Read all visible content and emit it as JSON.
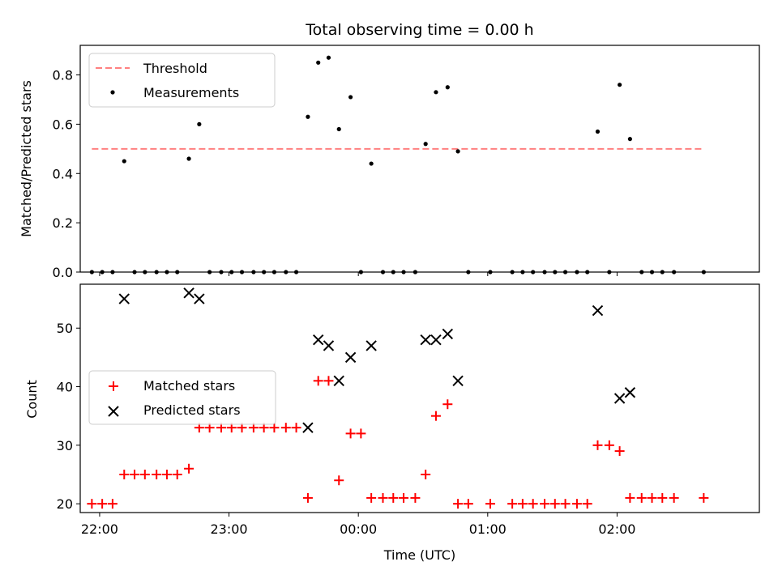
{
  "figure": {
    "title": "Total observing time = 0.00 h",
    "xlabel": "Time (UTC)"
  },
  "chart_data": [
    {
      "type": "scatter",
      "panel": "top",
      "ylabel": "Matched/Predicted stars",
      "xlim": [
        -0.15,
        5.1
      ],
      "ylim": [
        0,
        0.92
      ],
      "yticks": [
        0.0,
        0.2,
        0.4,
        0.6,
        0.8
      ],
      "legend": {
        "placement": "top-left",
        "entries": [
          "Threshold",
          "Measurements"
        ]
      },
      "threshold": {
        "name": "Threshold",
        "value": 0.5,
        "x": [
          -0.06,
          4.67
        ],
        "color": "#ff8080"
      },
      "measurements": {
        "name": "Measurements",
        "color": "#000000",
        "x": [
          -0.06,
          0.02,
          0.1,
          0.19,
          0.27,
          0.35,
          0.44,
          0.52,
          0.6,
          0.69,
          0.77,
          0.85,
          0.94,
          1.02,
          1.1,
          1.19,
          1.27,
          1.35,
          1.44,
          1.52,
          1.61,
          1.69,
          1.77,
          1.85,
          1.94,
          2.02,
          2.1,
          2.19,
          2.27,
          2.35,
          2.44,
          2.52,
          2.6,
          2.69,
          2.77,
          2.85,
          3.02,
          3.19,
          3.27,
          3.35,
          3.44,
          3.52,
          3.6,
          3.69,
          3.77,
          3.85,
          3.94,
          4.02,
          4.1,
          4.19,
          4.27,
          4.35,
          4.44,
          4.67
        ],
        "y": [
          0,
          0,
          0,
          0.45,
          0,
          0,
          0,
          0,
          0,
          0.46,
          0.6,
          0,
          0,
          0,
          0,
          0,
          0,
          0,
          0,
          0,
          0.63,
          0.85,
          0.87,
          0.58,
          0.71,
          0,
          0.44,
          0,
          0,
          0,
          0,
          0.52,
          0.73,
          0.75,
          0.49,
          0,
          0,
          0,
          0,
          0,
          0,
          0,
          0,
          0,
          0,
          0.57,
          0,
          0.76,
          0.54,
          0,
          0,
          0,
          0,
          0
        ]
      }
    },
    {
      "type": "scatter",
      "panel": "bottom",
      "ylabel": "Count",
      "xlim": [
        -0.15,
        5.1
      ],
      "ylim": [
        18.5,
        57.5
      ],
      "yticks": [
        20,
        30,
        40,
        50
      ],
      "xticks": [
        0,
        1,
        2,
        3,
        4
      ],
      "xticklabels": [
        "22:00",
        "23:00",
        "00:00",
        "01:00",
        "02:00"
      ],
      "legend": {
        "placement": "center-left",
        "entries": [
          "Matched stars",
          "Predicted stars"
        ]
      },
      "series": [
        {
          "name": "Matched stars",
          "marker": "plus",
          "color": "#ff0000",
          "x": [
            -0.06,
            0.02,
            0.1,
            0.19,
            0.27,
            0.35,
            0.44,
            0.52,
            0.6,
            0.69,
            0.77,
            0.85,
            0.94,
            1.02,
            1.1,
            1.19,
            1.27,
            1.35,
            1.44,
            1.52,
            1.61,
            1.69,
            1.77,
            1.85,
            1.94,
            2.02,
            2.1,
            2.19,
            2.27,
            2.35,
            2.44,
            2.52,
            2.6,
            2.69,
            2.77,
            2.85,
            3.02,
            3.19,
            3.27,
            3.35,
            3.44,
            3.52,
            3.6,
            3.69,
            3.77,
            3.85,
            3.94,
            4.02,
            4.1,
            4.19,
            4.27,
            4.35,
            4.44,
            4.67
          ],
          "y": [
            20,
            20,
            20,
            25,
            25,
            25,
            25,
            25,
            25,
            26,
            33,
            33,
            33,
            33,
            33,
            33,
            33,
            33,
            33,
            33,
            21,
            41,
            41,
            24,
            32,
            32,
            21,
            21,
            21,
            21,
            21,
            25,
            35,
            37,
            20,
            20,
            20,
            20,
            20,
            20,
            20,
            20,
            20,
            20,
            20,
            30,
            30,
            29,
            21,
            21,
            21,
            21,
            21,
            21
          ]
        },
        {
          "name": "Predicted stars",
          "marker": "x",
          "color": "#000000",
          "x": [
            0.19,
            0.69,
            0.77,
            1.61,
            1.69,
            1.77,
            1.85,
            1.94,
            2.1,
            2.52,
            2.6,
            2.69,
            2.77,
            3.85,
            4.02,
            4.1
          ],
          "y": [
            55,
            56,
            55,
            33,
            48,
            47,
            41,
            45,
            47,
            48,
            48,
            49,
            41,
            53,
            38,
            39
          ]
        }
      ]
    }
  ]
}
